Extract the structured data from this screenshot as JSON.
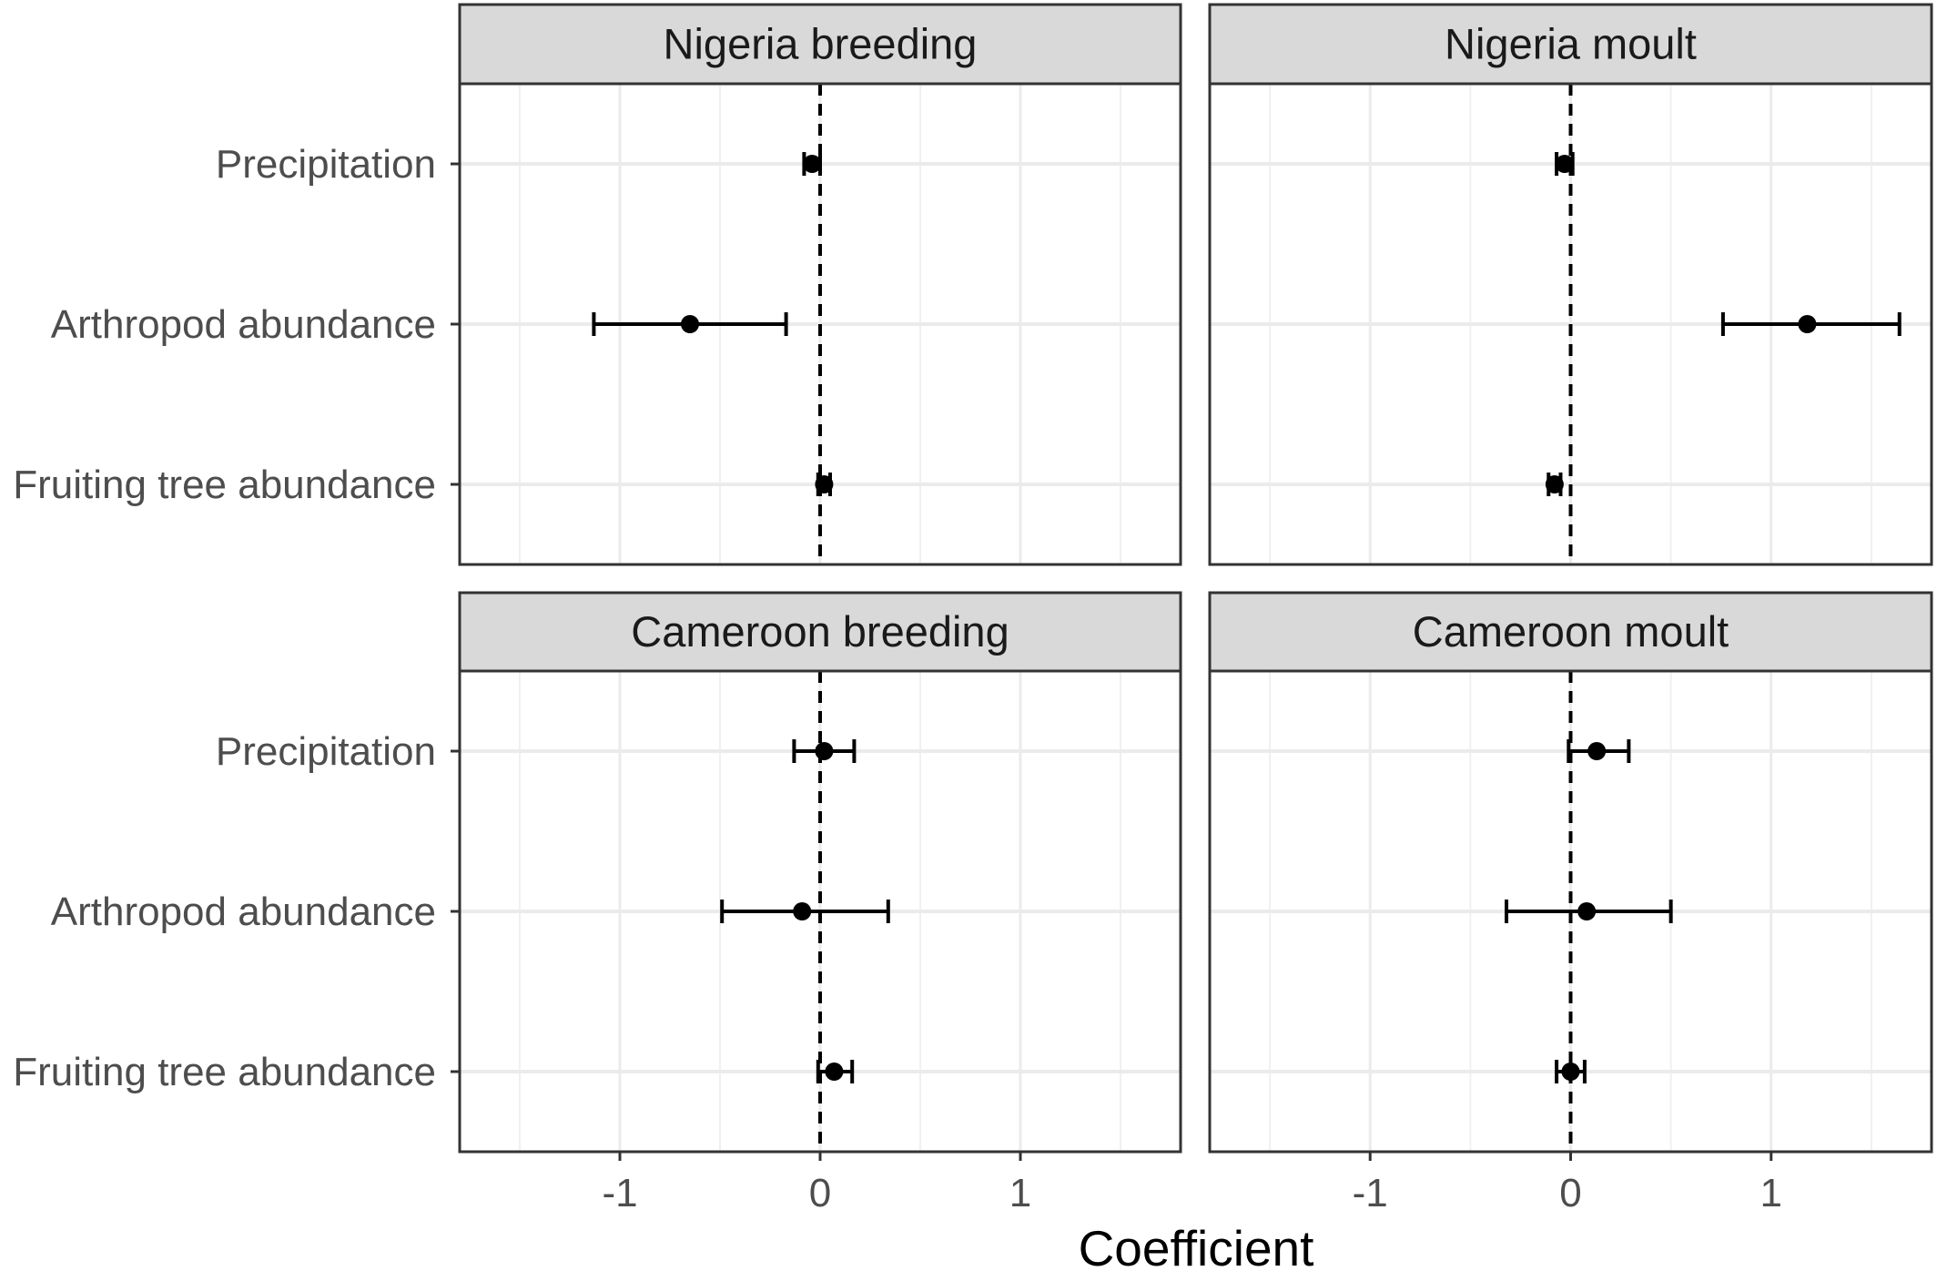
{
  "chart_data": {
    "type": "scatter",
    "subtype": "coefficient-plot-with-error-bars",
    "xlabel": "Coefficient",
    "ylabel": "",
    "xlim": [
      -1.8,
      1.8
    ],
    "x_ticks": [
      -1,
      0,
      1
    ],
    "x_tick_labels": [
      "-1",
      "0",
      "1"
    ],
    "categories": [
      "Precipitation",
      "Arthropod abundance",
      "Fruiting tree abundance"
    ],
    "reference_line": {
      "x": 0,
      "style": "dashed"
    },
    "grid": true,
    "legend": "none",
    "panels": [
      {
        "title": "Nigeria breeding",
        "points": [
          {
            "category": "Precipitation",
            "estimate": -0.04,
            "lower": -0.08,
            "upper": 0.0
          },
          {
            "category": "Arthropod abundance",
            "estimate": -0.65,
            "lower": -1.13,
            "upper": -0.17
          },
          {
            "category": "Fruiting tree abundance",
            "estimate": 0.02,
            "lower": -0.01,
            "upper": 0.05
          }
        ]
      },
      {
        "title": "Nigeria moult",
        "points": [
          {
            "category": "Precipitation",
            "estimate": -0.03,
            "lower": -0.07,
            "upper": 0.01
          },
          {
            "category": "Arthropod abundance",
            "estimate": 1.18,
            "lower": 0.76,
            "upper": 1.64
          },
          {
            "category": "Fruiting tree abundance",
            "estimate": -0.08,
            "lower": -0.11,
            "upper": -0.05
          }
        ]
      },
      {
        "title": "Cameroon breeding",
        "points": [
          {
            "category": "Precipitation",
            "estimate": 0.02,
            "lower": -0.13,
            "upper": 0.17
          },
          {
            "category": "Arthropod abundance",
            "estimate": -0.09,
            "lower": -0.49,
            "upper": 0.34
          },
          {
            "category": "Fruiting tree abundance",
            "estimate": 0.07,
            "lower": -0.01,
            "upper": 0.16
          }
        ]
      },
      {
        "title": "Cameroon moult",
        "points": [
          {
            "category": "Precipitation",
            "estimate": 0.13,
            "lower": -0.01,
            "upper": 0.29
          },
          {
            "category": "Arthropod abundance",
            "estimate": 0.08,
            "lower": -0.32,
            "upper": 0.5
          },
          {
            "category": "Fruiting tree abundance",
            "estimate": 0.0,
            "lower": -0.07,
            "upper": 0.07
          }
        ]
      }
    ]
  }
}
